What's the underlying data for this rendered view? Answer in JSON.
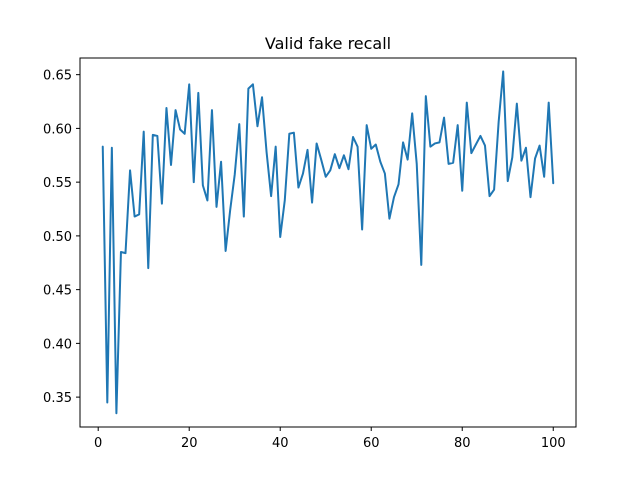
{
  "chart_data": {
    "type": "line",
    "title": "Valid fake recall",
    "xlabel": "",
    "ylabel": "",
    "xlim": [
      -4,
      105
    ],
    "ylim": [
      0.3222,
      0.6655
    ],
    "xticks": [
      0,
      20,
      40,
      60,
      80,
      100
    ],
    "yticks": [
      0.35,
      0.4,
      0.45,
      0.5,
      0.55,
      0.6,
      0.65
    ],
    "xtick_labels": [
      "0",
      "20",
      "40",
      "60",
      "80",
      "100"
    ],
    "ytick_labels": [
      "0.35",
      "0.40",
      "0.45",
      "0.50",
      "0.55",
      "0.60",
      "0.65"
    ],
    "grid": false,
    "line_color": "#1f77b4",
    "x": [
      1,
      2,
      3,
      4,
      5,
      6,
      7,
      8,
      9,
      10,
      11,
      12,
      13,
      14,
      15,
      16,
      17,
      18,
      19,
      20,
      21,
      22,
      23,
      24,
      25,
      26,
      27,
      28,
      29,
      30,
      31,
      32,
      33,
      34,
      35,
      36,
      37,
      38,
      39,
      40,
      41,
      42,
      43,
      44,
      45,
      46,
      47,
      48,
      49,
      50,
      51,
      52,
      53,
      54,
      55,
      56,
      57,
      58,
      59,
      60,
      61,
      62,
      63,
      64,
      65,
      66,
      67,
      68,
      69,
      70,
      71,
      72,
      73,
      74,
      75,
      76,
      77,
      78,
      79,
      80,
      81,
      82,
      83,
      84,
      85,
      86,
      87,
      88,
      89,
      90,
      91,
      92,
      93,
      94,
      95,
      96,
      97,
      98,
      99,
      100
    ],
    "y": [
      0.583,
      0.345,
      0.582,
      0.335,
      0.485,
      0.484,
      0.561,
      0.518,
      0.52,
      0.597,
      0.47,
      0.594,
      0.593,
      0.53,
      0.619,
      0.566,
      0.617,
      0.599,
      0.595,
      0.641,
      0.55,
      0.633,
      0.547,
      0.533,
      0.617,
      0.527,
      0.569,
      0.486,
      0.524,
      0.557,
      0.604,
      0.518,
      0.637,
      0.641,
      0.602,
      0.629,
      0.578,
      0.537,
      0.583,
      0.499,
      0.533,
      0.595,
      0.596,
      0.545,
      0.558,
      0.58,
      0.531,
      0.586,
      0.571,
      0.555,
      0.561,
      0.576,
      0.563,
      0.575,
      0.562,
      0.592,
      0.583,
      0.506,
      0.603,
      0.581,
      0.585,
      0.569,
      0.558,
      0.516,
      0.536,
      0.548,
      0.587,
      0.571,
      0.614,
      0.567,
      0.473,
      0.63,
      0.583,
      0.586,
      0.587,
      0.61,
      0.567,
      0.568,
      0.603,
      0.542,
      0.624,
      0.577,
      0.585,
      0.593,
      0.584,
      0.537,
      0.543,
      0.606,
      0.653,
      0.551,
      0.573,
      0.623,
      0.57,
      0.582,
      0.536,
      0.572,
      0.584,
      0.555,
      0.624,
      0.549
    ]
  }
}
